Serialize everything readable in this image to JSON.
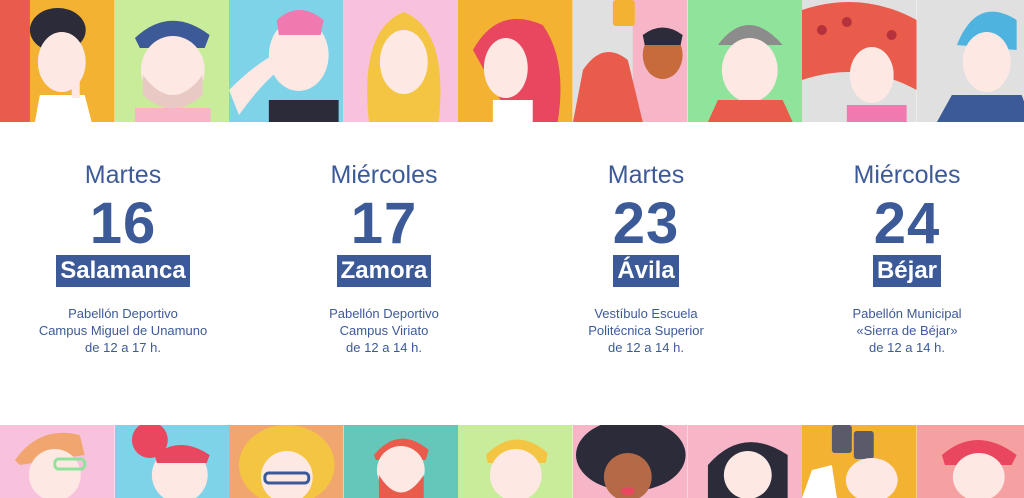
{
  "events": [
    {
      "weekday": "Martes",
      "day": "16",
      "city": "Salamanca",
      "venue": [
        "Pabellón Deportivo",
        "Campus Miguel de Unamuno",
        "de 12 a 17 h."
      ]
    },
    {
      "weekday": "Miércoles",
      "day": "17",
      "city": "Zamora",
      "venue": [
        "Pabellón Deportivo",
        "Campus Viriato",
        "de 12 a 14 h."
      ]
    },
    {
      "weekday": "Martes",
      "day": "23",
      "city": "Ávila",
      "venue": [
        "Vestíbulo Escuela",
        "Politécnica Superior",
        "de 12 a 14 h."
      ]
    },
    {
      "weekday": "Miércoles",
      "day": "24",
      "city": "Béjar",
      "venue": [
        "Pabellón Municipal",
        "«Sierra de Béjar»",
        "de 12 a 14 h."
      ]
    }
  ],
  "colors": {
    "accent": "#3d5a98",
    "top_tiles": [
      "#f4b233",
      "#c9ec9a",
      "#7ed3e8",
      "#f9c2dc",
      "#f4b233",
      "#f6b6c8",
      "#8fe39b",
      "#8fe39b",
      "#e95c4c",
      "#c8c8c8"
    ],
    "bottom_tiles": [
      "#f9c2dc",
      "#7ed3e8",
      "#f0a66e",
      "#64c7b9",
      "#c9ec9a",
      "#f6b6c8",
      "#f6b6c8",
      "#f4b233",
      "#f6a1a1"
    ]
  },
  "illustrations": {
    "top": [
      "person-finger-lips",
      "man-blue-hair",
      "woman-peace-sign",
      "blonde-woman",
      "red-haired-woman",
      "person-selfie",
      "man-beanie",
      "red-polka-hair",
      "blue-hair-woman"
    ],
    "bottom": [
      "glasses-man",
      "red-bun-woman",
      "curly-glasses-woman",
      "red-beard-man",
      "blonde-man",
      "curly-dark-hair",
      "woman-hands-face",
      "binoculars-person",
      "red-haired-man"
    ]
  }
}
